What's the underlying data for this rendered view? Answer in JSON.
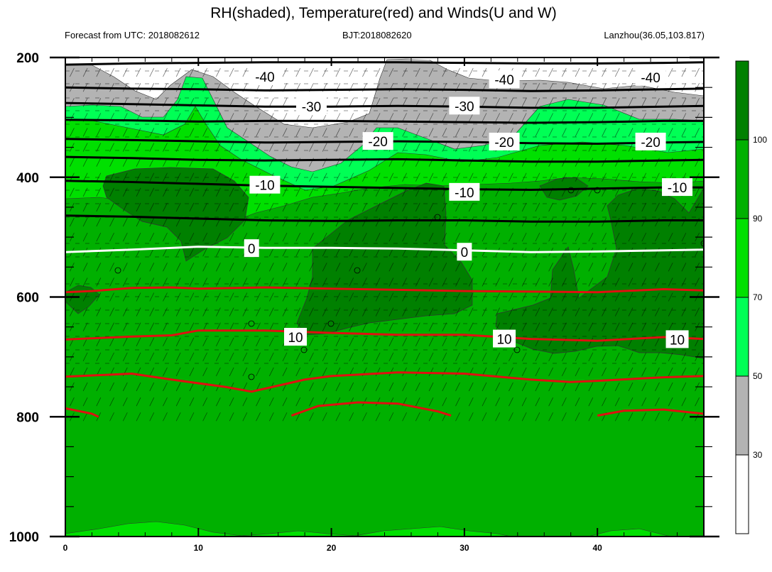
{
  "title": "RH(shaded), Temperature(red) and Winds(U and W)",
  "subtitle_left": "Forecast from UTC: 2018082612",
  "subtitle_center": "BJT:2018082620",
  "subtitle_right": "Lanzhou(36.05,103.817)",
  "colors": {
    "white": "#ffffff",
    "gray": "#b3b3b3",
    "light_green": "#00ff55",
    "green": "#00e000",
    "mid_green": "#00b000",
    "dark_green": "#008000",
    "temp_red": "#e01010",
    "zero_line": "#ffffff",
    "cold_line": "#000000"
  },
  "chart_data": {
    "type": "heatmap",
    "title": "RH(shaded), Temperature(red) and Winds(U and W)",
    "x_ticks": [
      0,
      10,
      20,
      30,
      40
    ],
    "x_tick_labels": [
      "0",
      "10",
      "20",
      "30",
      "40"
    ],
    "xlim": [
      0,
      48
    ],
    "y_ticks": [
      200,
      400,
      600,
      800,
      1000
    ],
    "y_tick_labels": [
      "200",
      "400",
      "600",
      "800",
      "1000"
    ],
    "ylim": [
      200,
      1000
    ],
    "y_reversed": true,
    "colorbar": {
      "levels": [
        "30",
        "50",
        "70",
        "90",
        "100"
      ],
      "bins": [
        {
          "from": 0,
          "to": 30,
          "color": "#ffffff"
        },
        {
          "from": 30,
          "to": 50,
          "color": "#b3b3b3"
        },
        {
          "from": 50,
          "to": 70,
          "color": "#00ff55"
        },
        {
          "from": 70,
          "to": 90,
          "color": "#00e000"
        },
        {
          "from": 90,
          "to": 100,
          "color": "#00b000"
        },
        {
          "from": 100,
          "to": 110,
          "color": "#008000"
        }
      ]
    },
    "temperature_contours": [
      {
        "level": -40,
        "color": "#000000",
        "points": [
          [
            0,
            212
          ],
          [
            5,
            210
          ],
          [
            10,
            209
          ],
          [
            15,
            208
          ],
          [
            20,
            208
          ],
          [
            25,
            208
          ],
          [
            30,
            209
          ],
          [
            35,
            210
          ],
          [
            40,
            210
          ],
          [
            45,
            209
          ],
          [
            48,
            208
          ]
        ]
      },
      {
        "level": -40,
        "color": "#000000",
        "label_at": [
          [
            15,
            232
          ],
          [
            33,
            237
          ],
          [
            44,
            233
          ]
        ],
        "points": [
          [
            0,
            250
          ],
          [
            5,
            252
          ],
          [
            10,
            253
          ],
          [
            15,
            255
          ],
          [
            20,
            254
          ],
          [
            25,
            253
          ],
          [
            30,
            254
          ],
          [
            35,
            256
          ],
          [
            40,
            255
          ],
          [
            45,
            253
          ],
          [
            48,
            252
          ]
        ]
      },
      {
        "level": -30,
        "color": "#000000",
        "label_at": [
          [
            18.5,
            282
          ],
          [
            30,
            281
          ]
        ],
        "points": [
          [
            0,
            276
          ],
          [
            5,
            278
          ],
          [
            10,
            280
          ],
          [
            15,
            282
          ],
          [
            20,
            282
          ],
          [
            25,
            281
          ],
          [
            30,
            282
          ],
          [
            35,
            284
          ],
          [
            40,
            284
          ],
          [
            45,
            282
          ],
          [
            48,
            281
          ]
        ]
      },
      {
        "level": -30,
        "color": "#000000",
        "points": [
          [
            0,
            304
          ],
          [
            5,
            305
          ],
          [
            10,
            307
          ],
          [
            15,
            306
          ],
          [
            20,
            306
          ],
          [
            25,
            307
          ],
          [
            30,
            308
          ],
          [
            35,
            309
          ],
          [
            40,
            308
          ],
          [
            45,
            306
          ],
          [
            48,
            306
          ]
        ]
      },
      {
        "level": -20,
        "color": "#000000",
        "label_at": [
          [
            23.5,
            340
          ],
          [
            33,
            341
          ],
          [
            44,
            341
          ]
        ],
        "points": [
          [
            0,
            336
          ],
          [
            5,
            338
          ],
          [
            10,
            340
          ],
          [
            15,
            342
          ],
          [
            20,
            341
          ],
          [
            25,
            340
          ],
          [
            30,
            341
          ],
          [
            35,
            343
          ],
          [
            40,
            344
          ],
          [
            45,
            342
          ],
          [
            48,
            341
          ]
        ]
      },
      {
        "level": -20,
        "color": "#000000",
        "points": [
          [
            0,
            366
          ],
          [
            5,
            368
          ],
          [
            10,
            371
          ],
          [
            15,
            372
          ],
          [
            20,
            371
          ],
          [
            25,
            370
          ],
          [
            30,
            372
          ],
          [
            35,
            374
          ],
          [
            40,
            374
          ],
          [
            45,
            372
          ],
          [
            48,
            371
          ]
        ]
      },
      {
        "level": -10,
        "color": "#000000",
        "label_at": [
          [
            15,
            413
          ],
          [
            30,
            425
          ],
          [
            46,
            417
          ]
        ],
        "points": [
          [
            0,
            406
          ],
          [
            5,
            408
          ],
          [
            10,
            411
          ],
          [
            15,
            414
          ],
          [
            20,
            416
          ],
          [
            25,
            418
          ],
          [
            30,
            420
          ],
          [
            35,
            421
          ],
          [
            40,
            419
          ],
          [
            45,
            417
          ],
          [
            48,
            417
          ]
        ]
      },
      {
        "level": -10,
        "color": "#000000",
        "points": [
          [
            0,
            464
          ],
          [
            5,
            466
          ],
          [
            10,
            469
          ],
          [
            15,
            472
          ],
          [
            20,
            473
          ],
          [
            25,
            472
          ],
          [
            30,
            472
          ],
          [
            35,
            474
          ],
          [
            40,
            474
          ],
          [
            45,
            472
          ],
          [
            48,
            472
          ]
        ]
      },
      {
        "level": 0,
        "color": "#ffffff",
        "label_at": [
          [
            14,
            519
          ],
          [
            30,
            525
          ]
        ],
        "points": [
          [
            0,
            525
          ],
          [
            5,
            521
          ],
          [
            10,
            516
          ],
          [
            15,
            518
          ],
          [
            20,
            518
          ],
          [
            25,
            519
          ],
          [
            30,
            522
          ],
          [
            35,
            525
          ],
          [
            40,
            524
          ],
          [
            45,
            522
          ],
          [
            48,
            521
          ]
        ]
      },
      {
        "level": 0,
        "color": "#e01010",
        "points": [
          [
            0,
            592
          ],
          [
            2,
            590
          ],
          [
            5,
            585
          ],
          [
            8,
            584
          ],
          [
            10,
            586
          ],
          [
            15,
            584
          ],
          [
            20,
            586
          ],
          [
            25,
            588
          ],
          [
            30,
            590
          ],
          [
            35,
            591
          ],
          [
            40,
            592
          ],
          [
            45,
            587
          ],
          [
            48,
            589
          ]
        ]
      },
      {
        "level": 10,
        "color": "#e01010",
        "label_at": [
          [
            17.3,
            667
          ],
          [
            33,
            670
          ],
          [
            46,
            671
          ]
        ],
        "points": [
          [
            0,
            671
          ],
          [
            5,
            666
          ],
          [
            8,
            664
          ],
          [
            10,
            656
          ],
          [
            15,
            656
          ],
          [
            20,
            660
          ],
          [
            25,
            663
          ],
          [
            30,
            663
          ],
          [
            35,
            670
          ],
          [
            40,
            673
          ],
          [
            45,
            667
          ],
          [
            48,
            670
          ]
        ]
      },
      {
        "level": 10,
        "color": "#e01010",
        "points": [
          [
            0,
            733
          ],
          [
            3,
            730
          ],
          [
            5,
            728
          ],
          [
            8,
            738
          ],
          [
            12,
            750
          ],
          [
            14,
            758
          ],
          [
            16,
            748
          ],
          [
            18,
            738
          ],
          [
            20,
            732
          ],
          [
            25,
            726
          ],
          [
            30,
            728
          ],
          [
            35,
            738
          ],
          [
            38,
            742
          ],
          [
            40,
            740
          ],
          [
            45,
            734
          ],
          [
            48,
            732
          ]
        ]
      },
      {
        "level": 10,
        "color": "#e01010",
        "points": [
          [
            0,
            786
          ],
          [
            2,
            795
          ],
          [
            2.5,
            800
          ]
        ]
      },
      {
        "level": 10,
        "color": "#e01010",
        "points": [
          [
            17,
            798
          ],
          [
            19,
            782
          ],
          [
            22,
            776
          ],
          [
            25,
            778
          ],
          [
            28,
            791
          ],
          [
            29,
            798
          ]
        ]
      },
      {
        "level": 10,
        "color": "#e01010",
        "points": [
          [
            40,
            798
          ],
          [
            42,
            790
          ],
          [
            45,
            788
          ],
          [
            48,
            795
          ]
        ]
      }
    ],
    "contour_labels": [
      "-40",
      "-30",
      "-20",
      "-10",
      "0",
      "10"
    ]
  }
}
